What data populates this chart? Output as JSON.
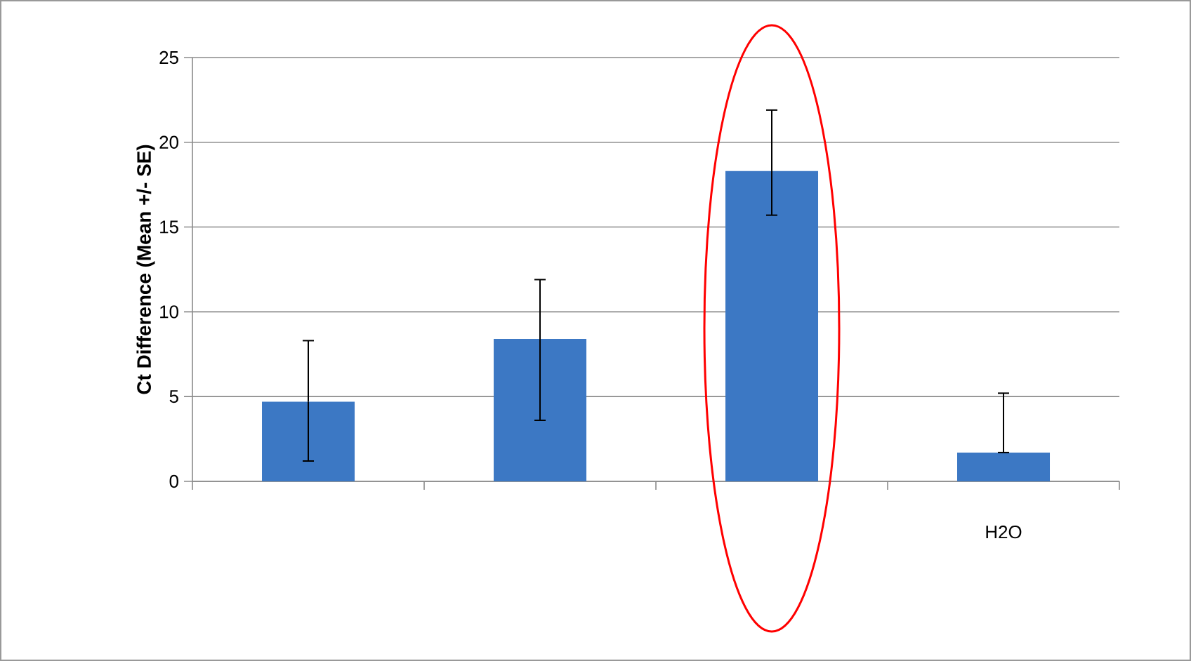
{
  "chart_data": {
    "type": "bar",
    "ylabel": "Ct Difference (Mean +/- SE)",
    "categories": [
      null,
      null,
      null,
      "H2O"
    ],
    "values": [
      4.7,
      8.4,
      18.3,
      1.7
    ],
    "errors": [
      [
        1.2,
        8.3
      ],
      [
        3.6,
        11.9
      ],
      [
        15.7,
        21.9
      ],
      [
        1.7,
        5.2
      ]
    ],
    "color": "#3c78c4",
    "ylim": [
      0,
      25
    ],
    "yticks": [
      0,
      5,
      10,
      15,
      20,
      25
    ],
    "grid": "y"
  }
}
